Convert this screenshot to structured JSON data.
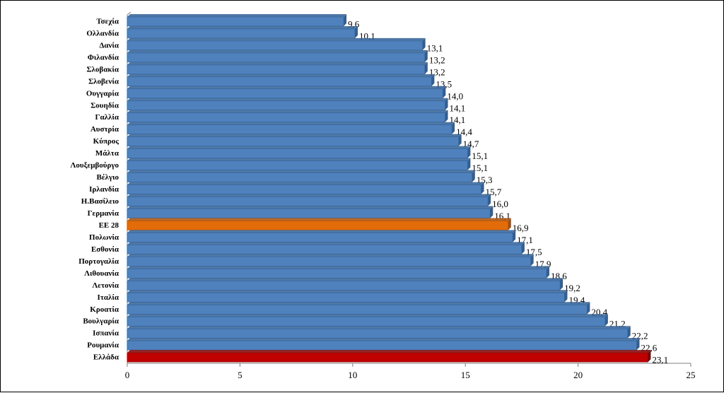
{
  "chart_data": {
    "type": "bar",
    "orientation": "horizontal",
    "categories": [
      "Τσεχία",
      "Ολλανδία",
      "Δανία",
      "Φιλανδία",
      "Σλοβακία",
      "Σλοβενία",
      "Ουγγαρία",
      "Σουηδία",
      "Γαλλία",
      "Αυστρία",
      "Κύπρος",
      "Μάλτα",
      "Λουξεμβούργο",
      "Βέλγιο",
      "Ιρλανδία",
      "Η.Βασίλειο",
      "Γερμανία",
      "ΕΕ 28",
      "Πολωνία",
      "Εσθονία",
      "Πορτογαλία",
      "Λιθουανία",
      "Λετονία",
      "Ιταλία",
      "Κροατία",
      "Βουλγαρία",
      "Ισπανία",
      "Ρουμανία",
      "Ελλάδα"
    ],
    "values": [
      9.6,
      10.1,
      13.1,
      13.2,
      13.2,
      13.5,
      14.0,
      14.1,
      14.1,
      14.4,
      14.7,
      15.1,
      15.1,
      15.3,
      15.7,
      16.0,
      16.1,
      16.9,
      17.1,
      17.5,
      17.9,
      18.6,
      19.2,
      19.4,
      20.4,
      21.2,
      22.2,
      22.6,
      23.1
    ],
    "value_labels": [
      "9,6",
      "10,1",
      "13,1",
      "13,2",
      "13,2",
      "13,5",
      "14,0",
      "14,1",
      "14,1",
      "14,4",
      "14,7",
      "15,1",
      "15,1",
      "15,3",
      "15,7",
      "16,0",
      "16,1",
      "16,9",
      "17,1",
      "17,5",
      "17,9",
      "18,6",
      "19,2",
      "19,4",
      "20,4",
      "21,2",
      "22,2",
      "22,6",
      "23,1"
    ],
    "xticks": [
      "0",
      "5",
      "10",
      "15",
      "20",
      "25"
    ],
    "xlim": [
      0,
      25
    ],
    "grid": false,
    "legend": "none",
    "colors": {
      "default": "#4f81bd",
      "default_dark": "#2f5f97",
      "ee28": "#e36c0a",
      "ee28_dark": "#a84d06",
      "greece": "#c00000",
      "greece_dark": "#7f0000"
    },
    "highlight": {
      "ΕΕ 28": "ee28",
      "Ελλάδα": "greece"
    }
  }
}
